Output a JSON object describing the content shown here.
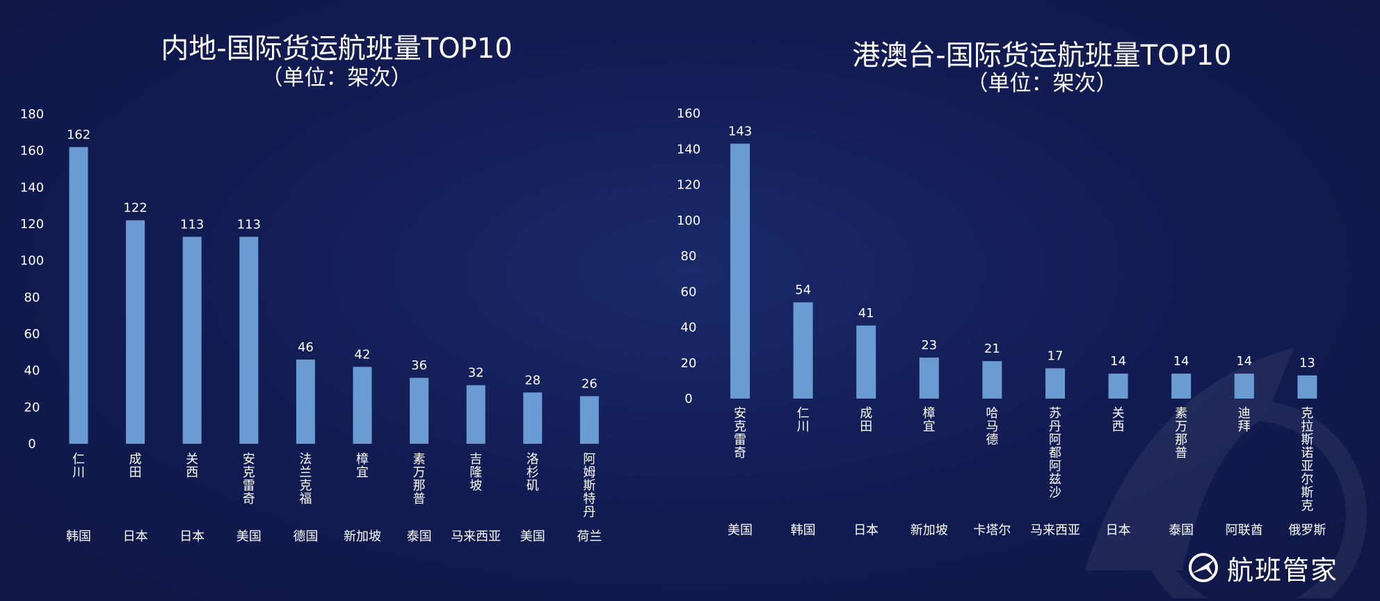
{
  "charts": [
    {
      "title": "内地-国际货运航班量TOP10",
      "unit": "（单位：架次）"
    },
    {
      "title": "港澳台-国际货运航班量TOP10",
      "unit": "（单位：架次）"
    }
  ],
  "brand": {
    "name": "航班管家",
    "icon": "plane-logo-icon"
  },
  "colors": {
    "bar": "#6b9bd3",
    "background": "#131d55",
    "text": "#ffffff"
  },
  "chart_data": [
    {
      "type": "bar",
      "title": "内地-国际货运航班量TOP10",
      "subtitle": "（单位：架次）",
      "categories": [
        "仁川",
        "成田",
        "关西",
        "安克雷奇",
        "法兰克福",
        "樟宜",
        "素万那普",
        "吉隆坡",
        "洛杉矶",
        "阿姆斯特丹"
      ],
      "countries": [
        "韩国",
        "日本",
        "日本",
        "美国",
        "德国",
        "新加坡",
        "泰国",
        "马来西亚",
        "美国",
        "荷兰"
      ],
      "values": [
        162,
        122,
        113,
        113,
        46,
        42,
        36,
        32,
        28,
        26
      ],
      "ylim": [
        0,
        180
      ],
      "yticks": [
        0,
        20,
        40,
        60,
        80,
        100,
        120,
        140,
        160,
        180
      ],
      "grid": false,
      "data_labels": true
    },
    {
      "type": "bar",
      "title": "港澳台-国际货运航班量TOP10",
      "subtitle": "（单位：架次）",
      "categories": [
        "安克雷奇",
        "仁川",
        "成田",
        "樟宜",
        "哈马德",
        "苏丹阿都阿兹沙",
        "关西",
        "素万那普",
        "迪拜",
        "克拉斯诺亚尔斯克"
      ],
      "countries": [
        "美国",
        "韩国",
        "日本",
        "新加坡",
        "卡塔尔",
        "马来西亚",
        "日本",
        "泰国",
        "阿联酋",
        "俄罗斯"
      ],
      "values": [
        143,
        54,
        41,
        23,
        21,
        17,
        14,
        14,
        14,
        13
      ],
      "ylim": [
        0,
        160
      ],
      "yticks": [
        0,
        20,
        40,
        60,
        80,
        100,
        120,
        140,
        160
      ],
      "grid": false,
      "data_labels": true
    }
  ]
}
